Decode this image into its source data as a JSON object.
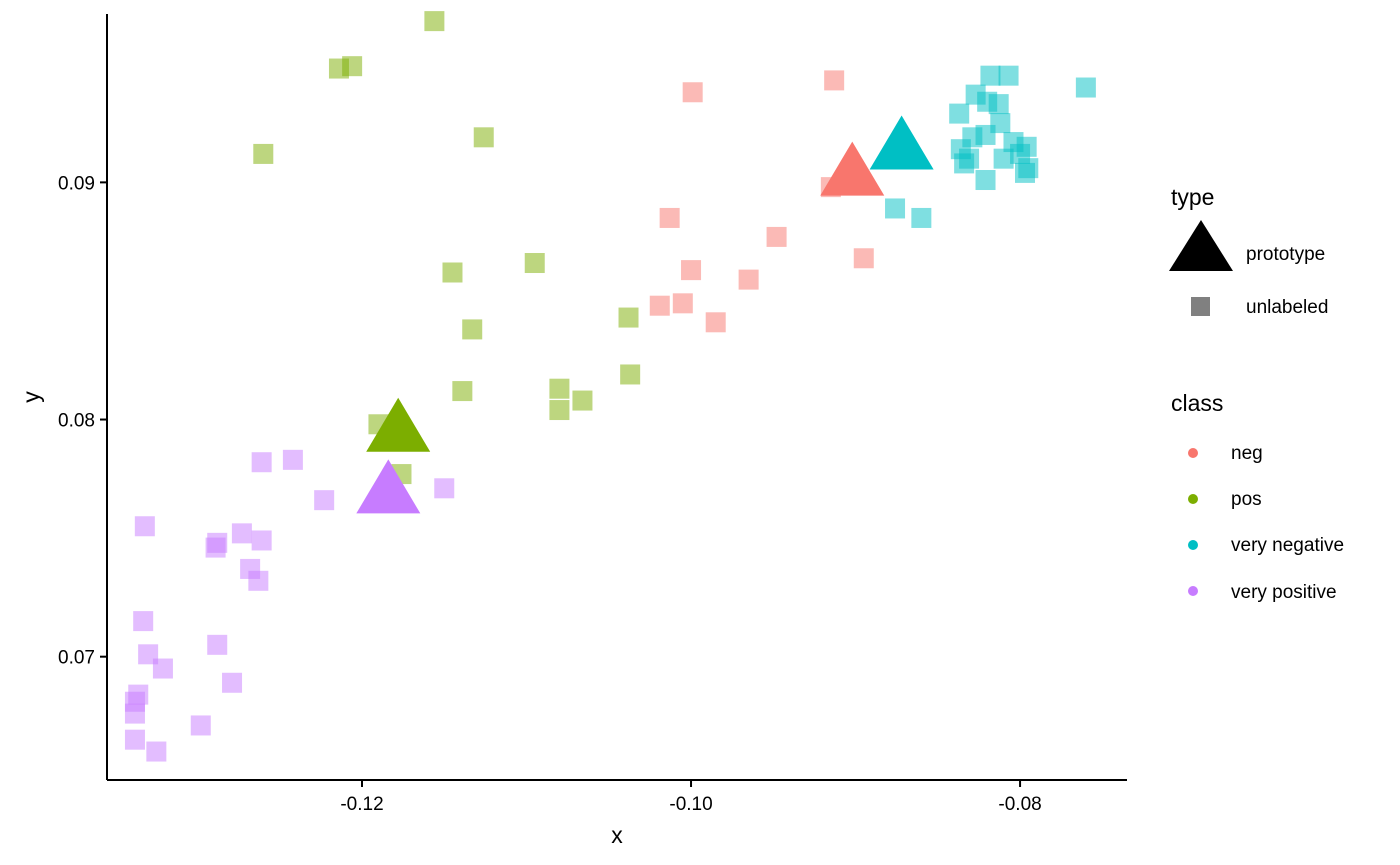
{
  "chart_data": {
    "type": "scatter",
    "xlabel": "x",
    "ylabel": "y",
    "xlim": [
      -0.1355,
      -0.0735
    ],
    "ylim": [
      0.0648,
      0.0971
    ],
    "x_ticks": [
      -0.12,
      -0.1,
      -0.08
    ],
    "x_tick_labels": [
      "-0.12",
      "-0.10",
      "-0.08"
    ],
    "y_ticks": [
      0.07,
      0.08,
      0.09
    ],
    "y_tick_labels": [
      "0.07",
      "0.08",
      "0.09"
    ],
    "grid": false,
    "legend_position": "right",
    "legends": {
      "type": {
        "title": "type",
        "entries": [
          {
            "label": "prototype",
            "shape": "triangle"
          },
          {
            "label": "unlabeled",
            "shape": "square"
          }
        ]
      },
      "class": {
        "title": "class",
        "entries": [
          {
            "label": "neg",
            "color": "#F8766D"
          },
          {
            "label": "pos",
            "color": "#7CAE00"
          },
          {
            "label": "very negative",
            "color": "#00BFC4"
          },
          {
            "label": "very positive",
            "color": "#C77CFF"
          }
        ]
      }
    },
    "series": [
      {
        "name": "neg",
        "color": "#F8766D",
        "type": "unlabeled",
        "points": [
          [
            -0.0913,
            0.0943
          ],
          [
            -0.0999,
            0.0938
          ],
          [
            -0.1013,
            0.0885
          ],
          [
            -0.0948,
            0.0877
          ],
          [
            -0.1,
            0.0863
          ],
          [
            -0.0965,
            0.0859
          ],
          [
            -0.1019,
            0.0848
          ],
          [
            -0.1005,
            0.0849
          ],
          [
            -0.0985,
            0.0841
          ],
          [
            -0.0895,
            0.0868
          ],
          [
            -0.0915,
            0.0898
          ]
        ]
      },
      {
        "name": "pos",
        "color": "#7CAE00",
        "type": "unlabeled",
        "points": [
          [
            -0.1156,
            0.0968
          ],
          [
            -0.1206,
            0.0949
          ],
          [
            -0.1214,
            0.0948
          ],
          [
            -0.1126,
            0.0919
          ],
          [
            -0.126,
            0.0912
          ],
          [
            -0.1095,
            0.0866
          ],
          [
            -0.1145,
            0.0862
          ],
          [
            -0.1133,
            0.0838
          ],
          [
            -0.1038,
            0.0843
          ],
          [
            -0.1037,
            0.0819
          ],
          [
            -0.1139,
            0.0812
          ],
          [
            -0.108,
            0.0813
          ],
          [
            -0.108,
            0.0804
          ],
          [
            -0.1066,
            0.0808
          ],
          [
            -0.119,
            0.0798
          ],
          [
            -0.1176,
            0.0777
          ]
        ]
      },
      {
        "name": "very negative",
        "color": "#00BFC4",
        "type": "unlabeled",
        "points": [
          [
            -0.0818,
            0.0945
          ],
          [
            -0.0807,
            0.0945
          ],
          [
            -0.076,
            0.094
          ],
          [
            -0.0827,
            0.0937
          ],
          [
            -0.082,
            0.0934
          ],
          [
            -0.0813,
            0.0933
          ],
          [
            -0.0837,
            0.0929
          ],
          [
            -0.0812,
            0.0925
          ],
          [
            -0.0821,
            0.092
          ],
          [
            -0.0829,
            0.0919
          ],
          [
            -0.0804,
            0.0917
          ],
          [
            -0.0796,
            0.0915
          ],
          [
            -0.0836,
            0.0914
          ],
          [
            -0.08,
            0.0912
          ],
          [
            -0.081,
            0.091
          ],
          [
            -0.0831,
            0.091
          ],
          [
            -0.0834,
            0.0908
          ],
          [
            -0.0795,
            0.0906
          ],
          [
            -0.0797,
            0.0904
          ],
          [
            -0.0821,
            0.0901
          ],
          [
            -0.0876,
            0.0889
          ],
          [
            -0.086,
            0.0885
          ]
        ]
      },
      {
        "name": "very positive",
        "color": "#C77CFF",
        "type": "unlabeled",
        "points": [
          [
            -0.1242,
            0.0783
          ],
          [
            -0.1261,
            0.0782
          ],
          [
            -0.115,
            0.0771
          ],
          [
            -0.1223,
            0.0766
          ],
          [
            -0.1332,
            0.0755
          ],
          [
            -0.1273,
            0.0752
          ],
          [
            -0.1261,
            0.0749
          ],
          [
            -0.1288,
            0.0748
          ],
          [
            -0.1289,
            0.0746
          ],
          [
            -0.1268,
            0.0737
          ],
          [
            -0.1263,
            0.0732
          ],
          [
            -0.1333,
            0.0715
          ],
          [
            -0.1288,
            0.0705
          ],
          [
            -0.133,
            0.0701
          ],
          [
            -0.1321,
            0.0695
          ],
          [
            -0.1279,
            0.0689
          ],
          [
            -0.1336,
            0.0684
          ],
          [
            -0.1338,
            0.0681
          ],
          [
            -0.1338,
            0.0676
          ],
          [
            -0.1298,
            0.0671
          ],
          [
            -0.1338,
            0.0665
          ],
          [
            -0.1325,
            0.066
          ]
        ]
      }
    ],
    "prototypes": [
      {
        "name": "neg",
        "color": "#F8766D",
        "x": -0.0902,
        "y": 0.0902
      },
      {
        "name": "very negative",
        "color": "#00BFC4",
        "x": -0.0872,
        "y": 0.0913
      },
      {
        "name": "pos",
        "color": "#7CAE00",
        "x": -0.1178,
        "y": 0.0794
      },
      {
        "name": "very positive",
        "color": "#C77CFF",
        "x": -0.1184,
        "y": 0.0768
      }
    ]
  }
}
